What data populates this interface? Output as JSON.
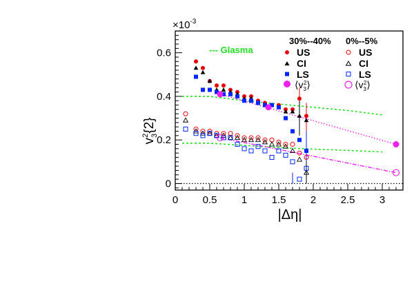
{
  "chart_data": {
    "type": "scatter",
    "multiplier_label": "×10",
    "multiplier_exp": "-3",
    "xlabel": "|Δη|",
    "ylabel_main": "v",
    "ylabel_sub": "3",
    "ylabel_sup": "2",
    "ylabel_rest": "{2}",
    "xlim": [
      0,
      3.3
    ],
    "ylim": [
      -0.03,
      0.7
    ],
    "x_ticks": [
      "0",
      "0.5",
      "1",
      "1.5",
      "2",
      "2.5",
      "3"
    ],
    "x_tick_values": [
      0,
      0.5,
      1,
      1.5,
      2,
      2.5,
      3
    ],
    "y_ticks": [
      "0",
      "0.2",
      "0.4",
      "0.6"
    ],
    "y_tick_values": [
      0,
      0.2,
      0.4,
      0.6
    ],
    "glasma_label": "--- Glasma",
    "legend_headers": [
      "30%--40%",
      "0%--5%"
    ],
    "legend_entries": [
      "US",
      "CI",
      "LS"
    ],
    "legend_avg": {
      "open": "⟨",
      "v": "v",
      "sub": "3",
      "sup": "2",
      "close": "⟩"
    },
    "colors": {
      "US": "#e8000b",
      "CI": "#000000",
      "LS": "#0026ff",
      "avg": "#ee22ee",
      "glasma": "#22dd22"
    },
    "series": [
      {
        "name": "US",
        "group": "30%--40%",
        "marker": "filled-circle",
        "color": "#e8000b",
        "x": [
          0.3,
          0.4,
          0.5,
          0.6,
          0.7,
          0.8,
          0.9,
          1.0,
          1.1,
          1.2,
          1.3,
          1.4,
          1.5,
          1.6,
          1.7,
          1.8,
          1.9
        ],
        "y": [
          0.56,
          0.53,
          0.47,
          0.45,
          0.45,
          0.43,
          0.42,
          0.4,
          0.4,
          0.38,
          0.37,
          0.36,
          0.36,
          0.34,
          0.34,
          0.39,
          0.31
        ]
      },
      {
        "name": "CI",
        "group": "30%--40%",
        "marker": "filled-triangle",
        "color": "#000000",
        "x": [
          0.3,
          0.4,
          0.5,
          0.6,
          0.7,
          0.8,
          0.9,
          1.0,
          1.1,
          1.2,
          1.3,
          1.4,
          1.5,
          1.6,
          1.7,
          1.8,
          1.9
        ],
        "y": [
          0.53,
          0.51,
          0.47,
          0.43,
          0.43,
          0.42,
          0.41,
          0.39,
          0.39,
          0.37,
          0.36,
          0.36,
          0.35,
          0.33,
          0.33,
          0.31,
          0.29
        ]
      },
      {
        "name": "LS",
        "group": "30%--40%",
        "marker": "filled-square",
        "color": "#0026ff",
        "x": [
          0.3,
          0.4,
          0.5,
          0.6,
          0.7,
          0.8,
          0.9,
          1.0,
          1.1,
          1.2,
          1.3,
          1.4,
          1.5,
          1.6,
          1.7,
          1.8,
          1.9
        ],
        "y": [
          0.49,
          0.43,
          0.43,
          0.42,
          0.41,
          0.41,
          0.4,
          0.38,
          0.38,
          0.37,
          0.36,
          0.36,
          0.35,
          0.3,
          0.24,
          0.2,
          0.15
        ]
      },
      {
        "name": "⟨v3²⟩",
        "group": "30%--40%",
        "marker": "filled-big-circle",
        "color": "#ee22ee",
        "x": [
          0.65,
          1.35,
          3.2
        ],
        "y": [
          0.41,
          0.35,
          0.18
        ]
      },
      {
        "name": "US",
        "group": "0%--5%",
        "marker": "open-circle",
        "color": "#e8000b",
        "x": [
          0.15,
          0.3,
          0.4,
          0.5,
          0.6,
          0.7,
          0.8,
          0.9,
          1.0,
          1.1,
          1.2,
          1.3,
          1.4,
          1.5,
          1.6,
          1.7,
          1.8,
          1.9
        ],
        "y": [
          0.32,
          0.25,
          0.24,
          0.24,
          0.23,
          0.23,
          0.23,
          0.22,
          0.21,
          0.21,
          0.21,
          0.2,
          0.2,
          0.19,
          0.18,
          0.18,
          0.14,
          0.12
        ]
      },
      {
        "name": "CI",
        "group": "0%--5%",
        "marker": "open-triangle",
        "color": "#000000",
        "x": [
          0.15,
          0.3,
          0.4,
          0.5,
          0.6,
          0.7,
          0.8,
          0.9,
          1.0,
          1.1,
          1.2,
          1.3,
          1.4,
          1.5,
          1.6,
          1.7,
          1.8,
          1.9
        ],
        "y": [
          0.29,
          0.24,
          0.23,
          0.23,
          0.22,
          0.22,
          0.21,
          0.21,
          0.2,
          0.2,
          0.2,
          0.19,
          0.18,
          0.18,
          0.17,
          0.15,
          0.11,
          0.05
        ]
      },
      {
        "name": "LS",
        "group": "0%--5%",
        "marker": "open-square",
        "color": "#0026ff",
        "x": [
          0.15,
          0.3,
          0.4,
          0.5,
          0.6,
          0.7,
          0.8,
          0.9,
          1.0,
          1.1,
          1.2,
          1.3,
          1.4,
          1.5,
          1.6,
          1.7,
          1.8,
          1.9
        ],
        "y": [
          0.25,
          0.23,
          0.22,
          0.23,
          0.22,
          0.21,
          0.21,
          0.18,
          0.16,
          0.15,
          0.17,
          0.15,
          0.12,
          0.15,
          0.13,
          0.1,
          0.02,
          0.07
        ]
      },
      {
        "name": "⟨v3²⟩",
        "group": "0%--5%",
        "marker": "open-big-circle",
        "color": "#ee22ee",
        "x": [
          0.65,
          3.2
        ],
        "y": [
          0.21,
          0.05
        ]
      }
    ],
    "error_bars": [
      {
        "series": 0,
        "index": 15,
        "lo": 0.29,
        "hi": 0.44
      },
      {
        "series": 0,
        "index": 16,
        "lo": 0.2,
        "hi": 0.37
      },
      {
        "series": 1,
        "index": 15,
        "lo": 0.22,
        "hi": 0.38
      },
      {
        "series": 2,
        "index": 16,
        "lo": 0.08,
        "hi": 0.24
      },
      {
        "series": 6,
        "index": 15,
        "lo": 0.0,
        "hi": 0.05
      },
      {
        "series": 5,
        "index": 17,
        "lo": 0.0,
        "hi": 0.1
      }
    ],
    "curves": [
      {
        "name": "glasma-central",
        "style": "green-dashed",
        "x": [
          0.1,
          0.5,
          1.0,
          1.5,
          2.0,
          2.5,
          3.0
        ],
        "y": [
          0.4,
          0.4,
          0.38,
          0.365,
          0.35,
          0.335,
          0.315
        ]
      },
      {
        "name": "glasma-peripheral",
        "style": "green-dashed",
        "x": [
          0.1,
          0.5,
          1.0,
          1.5,
          2.0,
          2.5,
          3.0
        ],
        "y": [
          0.185,
          0.185,
          0.175,
          0.165,
          0.158,
          0.152,
          0.145
        ]
      },
      {
        "name": "avg-fit-30-40",
        "style": "magenta-dotted",
        "x": [
          0.65,
          3.2
        ],
        "y": [
          0.41,
          0.18
        ]
      },
      {
        "name": "avg-fit-0-5",
        "style": "magenta-dashdot",
        "x": [
          0.65,
          3.2
        ],
        "y": [
          0.21,
          0.05
        ]
      },
      {
        "name": "zero-line",
        "style": "black-dotted",
        "x": [
          0,
          3.3
        ],
        "y": [
          0,
          0
        ]
      }
    ]
  }
}
